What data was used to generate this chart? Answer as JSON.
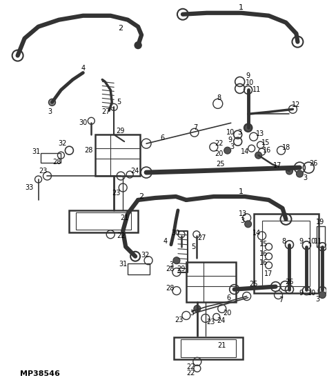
{
  "background_color": "#ffffff",
  "line_color": "#333333",
  "figsize": [
    4.74,
    5.51
  ],
  "dpi": 100,
  "watermark": "MP38546"
}
